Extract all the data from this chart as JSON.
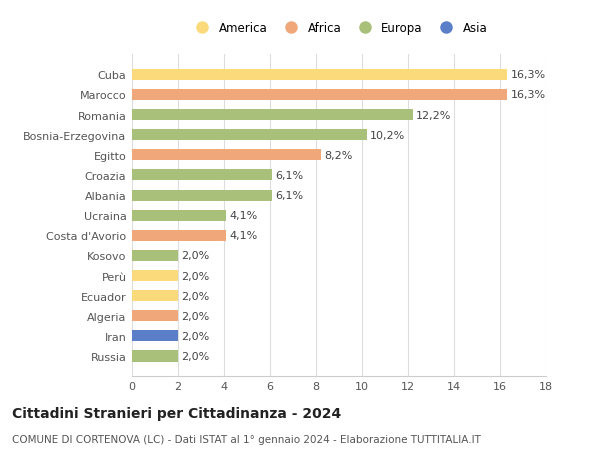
{
  "title": "Cittadini Stranieri per Cittadinanza - 2024",
  "subtitle": "COMUNE DI CORTENOVA (LC) - Dati ISTAT al 1° gennaio 2024 - Elaborazione TUTTITALIA.IT",
  "categories": [
    "Cuba",
    "Marocco",
    "Romania",
    "Bosnia-Erzegovina",
    "Egitto",
    "Croazia",
    "Albania",
    "Ucraina",
    "Costa d'Avorio",
    "Kosovo",
    "Perù",
    "Ecuador",
    "Algeria",
    "Iran",
    "Russia"
  ],
  "values": [
    16.3,
    16.3,
    12.2,
    10.2,
    8.2,
    6.1,
    6.1,
    4.1,
    4.1,
    2.0,
    2.0,
    2.0,
    2.0,
    2.0,
    2.0
  ],
  "continents": [
    "America",
    "Africa",
    "Europa",
    "Europa",
    "Africa",
    "Europa",
    "Europa",
    "Europa",
    "Africa",
    "Europa",
    "America",
    "America",
    "Africa",
    "Asia",
    "Europa"
  ],
  "continent_colors": {
    "America": "#FADA7A",
    "Africa": "#F0A87A",
    "Europa": "#A8C07A",
    "Asia": "#5B7EC9"
  },
  "legend_order": [
    "America",
    "Africa",
    "Europa",
    "Asia"
  ],
  "xlim": [
    0,
    18
  ],
  "xticks": [
    0,
    2,
    4,
    6,
    8,
    10,
    12,
    14,
    16,
    18
  ],
  "bar_height": 0.55,
  "background_color": "#ffffff",
  "grid_color": "#dddddd",
  "label_fontsize": 8,
  "title_fontsize": 10,
  "subtitle_fontsize": 7.5,
  "legend_fontsize": 8.5,
  "tick_fontsize": 8
}
